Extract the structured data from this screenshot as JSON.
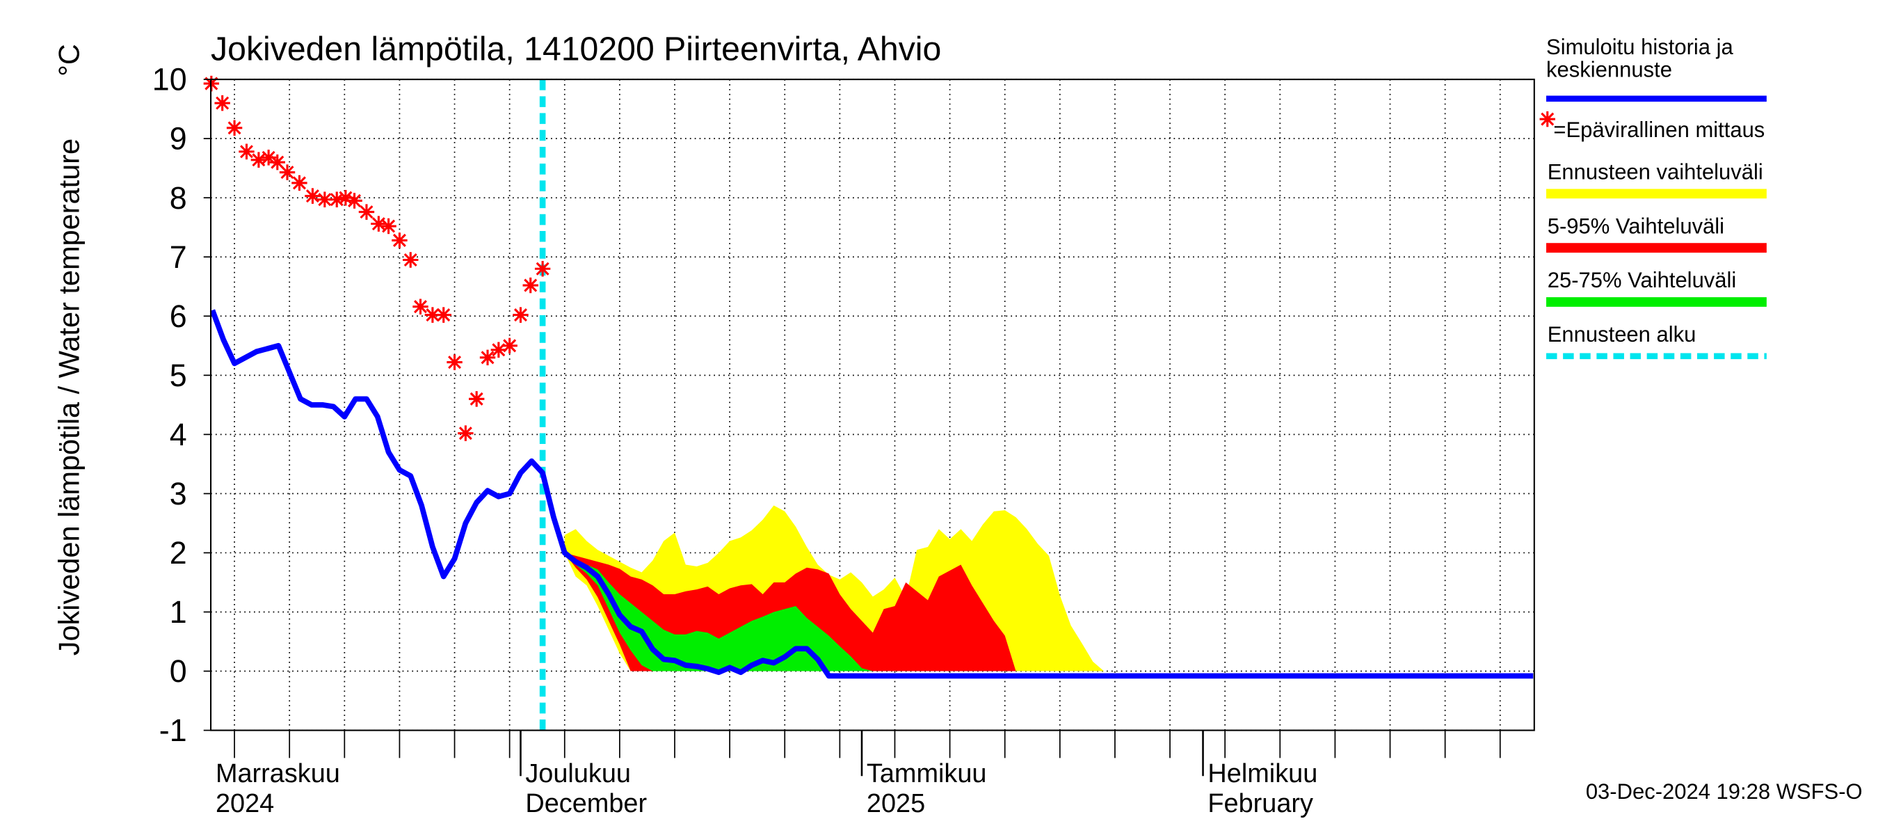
{
  "chart_data": {
    "type": "line",
    "title": "Jokiveden lämpötila, 1410200 Piirteenvirta, Ahvio",
    "y_label": "Jokiveden lämpötila / Water temperature",
    "y_unit": "°C",
    "footer": "03-Dec-2024 19:28 WSFS-O",
    "xlim": [
      1.85,
      122.1
    ],
    "ylim": [
      -1,
      10
    ],
    "yticks": [
      -1,
      0,
      1,
      2,
      3,
      4,
      5,
      6,
      7,
      8,
      9,
      10
    ],
    "xticks": [
      {
        "value": 0,
        "label": [
          "Marraskuu",
          "2024"
        ]
      },
      {
        "value": 30,
        "label": [
          "Joulukuu",
          "December"
        ]
      },
      {
        "value": 61,
        "label": [
          "Tammikuu",
          "2025"
        ]
      },
      {
        "value": 92,
        "label": [
          "Helmikuu",
          "February"
        ]
      }
    ],
    "xgrid": [
      4,
      9,
      14,
      19,
      24,
      29,
      34,
      39,
      44,
      49,
      54,
      59,
      64,
      69,
      74,
      79,
      84,
      89,
      94,
      99,
      104,
      109,
      114,
      119
    ],
    "grid": true,
    "bands": [
      {
        "name": "Ennusteen vaihteluväli",
        "color": "#ffff00",
        "x": [
          34,
          35,
          36,
          37,
          38,
          39,
          40,
          41,
          42,
          43,
          44,
          45,
          46,
          47,
          48,
          49,
          50,
          51,
          52,
          53,
          54,
          55,
          56,
          57,
          58,
          59,
          60,
          61,
          62,
          63,
          64,
          65,
          66,
          67,
          68,
          69,
          70,
          71,
          72,
          73,
          74,
          75,
          76,
          77,
          78,
          79,
          80,
          81,
          82,
          83
        ],
        "upper": [
          2.3,
          2.4,
          2.2,
          2.05,
          1.95,
          1.85,
          1.75,
          1.67,
          1.87,
          2.2,
          2.34,
          1.8,
          1.77,
          1.83,
          2.0,
          2.2,
          2.26,
          2.38,
          2.56,
          2.8,
          2.7,
          2.44,
          2.1,
          1.8,
          1.63,
          1.55,
          1.67,
          1.5,
          1.26,
          1.38,
          1.58,
          1.24,
          2.05,
          2.1,
          2.4,
          2.23,
          2.4,
          2.2,
          2.48,
          2.7,
          2.72,
          2.6,
          2.4,
          2.15,
          1.95,
          1.28,
          0.77,
          0.47,
          0.16,
          0
        ],
        "lower": [
          2.0,
          1.6,
          1.45,
          1.1,
          0.7,
          0.3,
          0,
          0,
          0,
          0,
          0,
          0,
          0,
          0,
          0,
          0,
          0,
          0,
          0,
          0,
          0,
          0,
          0,
          0,
          0,
          0,
          0,
          0,
          0,
          0,
          0,
          0,
          0,
          0,
          0,
          0,
          0,
          0,
          0,
          0,
          0,
          0,
          0,
          0,
          0,
          0,
          0,
          0,
          0,
          0
        ]
      },
      {
        "name": "5-95% Vaihteluväli",
        "color": "#ff0000",
        "x": [
          34,
          35,
          36,
          37,
          38,
          39,
          40,
          41,
          42,
          43,
          44,
          45,
          46,
          47,
          48,
          49,
          50,
          51,
          52,
          53,
          54,
          55,
          56,
          57,
          58,
          59,
          60,
          61,
          62,
          63,
          64,
          65,
          66,
          67,
          68,
          69,
          70,
          71,
          72,
          73,
          74,
          75
        ],
        "upper": [
          2.0,
          1.95,
          1.9,
          1.85,
          1.8,
          1.73,
          1.6,
          1.55,
          1.45,
          1.3,
          1.3,
          1.35,
          1.38,
          1.43,
          1.3,
          1.4,
          1.45,
          1.47,
          1.3,
          1.5,
          1.5,
          1.65,
          1.75,
          1.72,
          1.65,
          1.3,
          1.05,
          0.85,
          0.65,
          1.05,
          1.1,
          1.5,
          1.35,
          1.2,
          1.6,
          1.7,
          1.8,
          1.45,
          1.15,
          0.85,
          0.6,
          0
        ],
        "lower": [
          2.0,
          1.75,
          1.55,
          1.25,
          0.85,
          0.45,
          0,
          0,
          0,
          0,
          0,
          0,
          0,
          0,
          0,
          0,
          0,
          0,
          0,
          0,
          0,
          0,
          0,
          0,
          0,
          0,
          0,
          0,
          0,
          0,
          0,
          0,
          0,
          0,
          0,
          0,
          0,
          0,
          0,
          0,
          0,
          0
        ]
      },
      {
        "name": "25-75% Vaihteluväli",
        "color": "#00ee00",
        "x": [
          34,
          35,
          36,
          37,
          38,
          39,
          40,
          41,
          42,
          43,
          44,
          45,
          46,
          47,
          48,
          49,
          50,
          51,
          52,
          53,
          54,
          55,
          56,
          57,
          58,
          59,
          60,
          61,
          62
        ],
        "upper": [
          2.0,
          1.9,
          1.8,
          1.72,
          1.5,
          1.3,
          1.15,
          1.0,
          0.85,
          0.7,
          0.62,
          0.62,
          0.68,
          0.65,
          0.55,
          0.65,
          0.75,
          0.85,
          0.92,
          1.0,
          1.05,
          1.1,
          0.9,
          0.75,
          0.6,
          0.42,
          0.25,
          0.05,
          0
        ],
        "lower": [
          2.0,
          1.8,
          1.65,
          1.45,
          1.05,
          0.65,
          0.35,
          0.1,
          0,
          0,
          0,
          0,
          0,
          0,
          0,
          0,
          0,
          0,
          0,
          0,
          0,
          0,
          0,
          0,
          0,
          0,
          0,
          0,
          0
        ]
      }
    ],
    "series": [
      {
        "name": "Simuloitu historia ja keskiennuste",
        "color": "#0000ff",
        "x": [
          2,
          3,
          4,
          5,
          6,
          7,
          8,
          9,
          10,
          11,
          12,
          13,
          14,
          15,
          16,
          17,
          18,
          19,
          20,
          21,
          22,
          23,
          24,
          25,
          26,
          27,
          28,
          29,
          30,
          31,
          32,
          33,
          34,
          35,
          36,
          37,
          38,
          39,
          40,
          41,
          42,
          43,
          44,
          45,
          46,
          47,
          48,
          49,
          50,
          51,
          52,
          53,
          54,
          55,
          56,
          57,
          58,
          122
        ],
        "values": [
          6.1,
          5.6,
          5.2,
          5.3,
          5.4,
          5.45,
          5.5,
          5.05,
          4.6,
          4.5,
          4.5,
          4.47,
          4.3,
          4.6,
          4.6,
          4.3,
          3.7,
          3.4,
          3.3,
          2.8,
          2.1,
          1.6,
          1.9,
          2.5,
          2.85,
          3.05,
          2.95,
          3.0,
          3.35,
          3.55,
          3.35,
          2.6,
          2.0,
          1.85,
          1.75,
          1.6,
          1.3,
          0.95,
          0.75,
          0.67,
          0.37,
          0.2,
          0.18,
          0.1,
          0.08,
          0.04,
          -0.02,
          0.06,
          -0.02,
          0.1,
          0.18,
          0.14,
          0.24,
          0.38,
          0.38,
          0.2,
          -0.08,
          -0.08
        ]
      }
    ],
    "observations": {
      "name": "=Epävirallinen mittaus",
      "color": "#ff0000",
      "x": [
        1.9,
        2.9,
        4.0,
        5.1,
        6.2,
        7.1,
        7.9,
        8.8,
        9.9,
        11.1,
        12.2,
        13.3,
        14.1,
        14.9,
        16.0,
        17.1,
        18.0,
        19.0,
        20.0,
        20.9,
        22.0,
        23.0,
        24.0,
        25.0,
        26.0,
        27.0,
        28.0,
        29.0,
        30.0,
        30.9,
        32.0
      ],
      "values": [
        9.93,
        9.6,
        9.18,
        8.78,
        8.64,
        8.68,
        8.6,
        8.43,
        8.25,
        8.03,
        7.97,
        7.97,
        8.0,
        7.95,
        7.76,
        7.56,
        7.52,
        7.28,
        6.95,
        6.16,
        6.02,
        6.02,
        5.22,
        4.02,
        4.6,
        5.3,
        5.43,
        5.5,
        6.02,
        6.52,
        6.8
      ]
    },
    "forecast_start": {
      "name": "Ennusteen alku",
      "x": 32,
      "color": "#00e5ee"
    }
  }
}
